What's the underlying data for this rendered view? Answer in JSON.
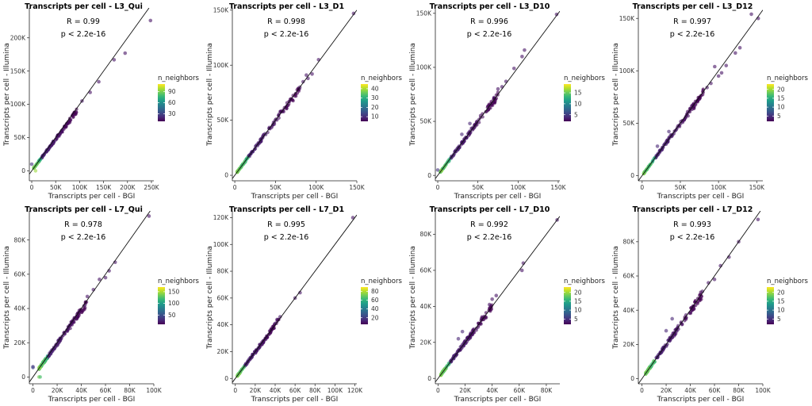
{
  "chart_data": [
    {
      "type": "scatter",
      "title": "Transcripts per cell - L3_Qui",
      "xlabel": "Transcripts per cell - BGI",
      "ylabel": "Transcripts per cell - Illumina",
      "xlim": [
        -5000,
        255000
      ],
      "ylim": [
        -15000,
        245000
      ],
      "xticks": [
        0,
        50000,
        100000,
        150000,
        200000,
        250000
      ],
      "xticklabels": [
        "0",
        "50K",
        "100K",
        "150K",
        "200K",
        "250K"
      ],
      "yticks": [
        0,
        50000,
        100000,
        150000,
        200000
      ],
      "yticklabels": [
        "0",
        "50K",
        "100K",
        "150K",
        "200K"
      ],
      "annotation_r": "R = 0.99",
      "annotation_p": "p < 2.2e-16",
      "legend": {
        "title": "n_neighbors",
        "ticks": [
          30,
          60,
          90
        ],
        "tick_labels": [
          "30",
          "60",
          "90"
        ],
        "min": 10,
        "max": 110,
        "placement": "right"
      },
      "identity_line": true,
      "points": [
        [
          0,
          10000,
          0.15
        ],
        [
          8000,
          0,
          0.85
        ],
        [
          248000,
          226000,
          0.05
        ],
        [
          195000,
          177000,
          0.05
        ],
        [
          172000,
          167000,
          0.05
        ],
        [
          140000,
          134000,
          0.05
        ],
        [
          122000,
          118000,
          0.05
        ],
        [
          105000,
          105000,
          0.05
        ]
      ],
      "cloud": {
        "x_start": 4000,
        "x_end": 95000,
        "slope": 0.95,
        "n": 170,
        "seed": 11
      }
    },
    {
      "type": "scatter",
      "title": "Transcripts per cell - L3_D1",
      "xlabel": "Transcripts per cell - BGI",
      "ylabel": "Transcripts per cell - Illumina",
      "xlim": [
        -3000,
        150000
      ],
      "ylim": [
        -5000,
        152000
      ],
      "xticks": [
        0,
        50000,
        100000,
        150000
      ],
      "xticklabels": [
        "0",
        "50K",
        "100K",
        "150K"
      ],
      "yticks": [
        0,
        50000,
        100000,
        150000
      ],
      "yticklabels": [
        "0",
        "50K",
        "100K",
        "150K"
      ],
      "annotation_r": "R = 0.998",
      "annotation_p": "p < 2.2e-16",
      "legend": {
        "title": "n_neighbors",
        "ticks": [
          10,
          20,
          30,
          40
        ],
        "tick_labels": [
          "10",
          "20",
          "30",
          "40"
        ],
        "min": 5,
        "max": 45,
        "placement": "right"
      },
      "identity_line": true,
      "points": [
        [
          146000,
          147000,
          0.05
        ],
        [
          103000,
          105000,
          0.05
        ],
        [
          95000,
          92000,
          0.05
        ],
        [
          90000,
          88000,
          0.05
        ],
        [
          88000,
          91000,
          0.05
        ],
        [
          84000,
          85000,
          0.05
        ],
        [
          80000,
          80000,
          0.05
        ]
      ],
      "cloud": {
        "x_start": 3000,
        "x_end": 80000,
        "slope": 0.99,
        "n": 170,
        "seed": 12
      }
    },
    {
      "type": "scatter",
      "title": "Transcripts per cell - L3_D10",
      "xlabel": "Transcripts per cell - BGI",
      "ylabel": "Transcripts per cell - Illumina",
      "xlim": [
        -3000,
        152000
      ],
      "ylim": [
        -5000,
        155000
      ],
      "xticks": [
        0,
        50000,
        100000,
        150000
      ],
      "xticklabels": [
        "0",
        "50K",
        "100K",
        "150K"
      ],
      "yticks": [
        0,
        50000,
        100000,
        150000
      ],
      "yticklabels": [
        "0",
        "50K",
        "100K",
        "150K"
      ],
      "annotation_r": "R = 0.996",
      "annotation_p": "p < 2.2e-16",
      "legend": {
        "title": "n_neighbors",
        "ticks": [
          5,
          10,
          15
        ],
        "tick_labels": [
          "5",
          "10",
          "15"
        ],
        "min": 2,
        "max": 19,
        "placement": "right"
      },
      "identity_line": true,
      "points": [
        [
          148000,
          149000,
          0.05
        ],
        [
          108000,
          116000,
          0.05
        ],
        [
          105000,
          110000,
          0.05
        ],
        [
          95000,
          99000,
          0.05
        ],
        [
          85000,
          87000,
          0.05
        ],
        [
          80000,
          82000,
          0.05
        ],
        [
          75000,
          80000,
          0.05
        ],
        [
          70000,
          72000,
          0.05
        ],
        [
          0,
          5000,
          0.15
        ],
        [
          30000,
          38000,
          0.1
        ],
        [
          40000,
          48000,
          0.1
        ]
      ],
      "cloud": {
        "x_start": 3000,
        "x_end": 75000,
        "slope": 0.99,
        "n": 170,
        "seed": 13
      }
    },
    {
      "type": "scatter",
      "title": "Transcripts per cell - L3_D12",
      "xlabel": "Transcripts per cell - BGI",
      "ylabel": "Transcripts per cell - Illumina",
      "xlim": [
        -5000,
        158000
      ],
      "ylim": [
        -5000,
        160000
      ],
      "xticks": [
        0,
        50000,
        100000,
        150000
      ],
      "xticklabels": [
        "0",
        "50K",
        "100K",
        "150K"
      ],
      "yticks": [
        0,
        50000,
        100000,
        150000
      ],
      "yticklabels": [
        "0",
        "50K",
        "100K",
        "150K"
      ],
      "annotation_r": "R = 0.997",
      "annotation_p": "p < 2.2e-16",
      "legend": {
        "title": "n_neighbors",
        "ticks": [
          5,
          10,
          15,
          20
        ],
        "tick_labels": [
          "5",
          "10",
          "15",
          "20"
        ],
        "min": 2,
        "max": 23,
        "placement": "right"
      },
      "identity_line": true,
      "points": [
        [
          152000,
          150000,
          0.05
        ],
        [
          143000,
          154000,
          0.05
        ],
        [
          128000,
          122000,
          0.05
        ],
        [
          122000,
          117000,
          0.05
        ],
        [
          110000,
          105000,
          0.05
        ],
        [
          104000,
          98000,
          0.05
        ],
        [
          100000,
          95000,
          0.05
        ],
        [
          95000,
          104000,
          0.05
        ],
        [
          90000,
          88000,
          0.05
        ],
        [
          85000,
          84000,
          0.05
        ],
        [
          20000,
          28000,
          0.1
        ],
        [
          35000,
          42000,
          0.1
        ]
      ],
      "cloud": {
        "x_start": 2000,
        "x_end": 85000,
        "slope": 0.99,
        "n": 180,
        "seed": 14
      }
    },
    {
      "type": "scatter",
      "title": "Transcripts per cell - L7_Qui",
      "xlabel": "Transcripts per cell - BGI",
      "ylabel": "Transcripts per cell - Illumina",
      "xlim": [
        -3000,
        100000
      ],
      "ylim": [
        -4000,
        97000
      ],
      "xticks": [
        0,
        20000,
        40000,
        60000,
        80000,
        100000
      ],
      "xticklabels": [
        "0",
        "20K",
        "40K",
        "60K",
        "80K",
        "100K"
      ],
      "yticks": [
        0,
        20000,
        40000,
        60000,
        80000
      ],
      "yticklabels": [
        "0",
        "20K",
        "40K",
        "60K",
        "80K"
      ],
      "annotation_r": "R = 0.978",
      "annotation_p": "p < 2.2e-16",
      "legend": {
        "title": "n_neighbors",
        "ticks": [
          50,
          100,
          150
        ],
        "tick_labels": [
          "50",
          "100",
          "150"
        ],
        "min": 10,
        "max": 170,
        "placement": "right"
      },
      "identity_line": true,
      "points": [
        [
          96000,
          94000,
          0.05
        ],
        [
          68000,
          67000,
          0.05
        ],
        [
          63000,
          62000,
          0.05
        ],
        [
          60000,
          58000,
          0.05
        ],
        [
          55000,
          57000,
          0.05
        ],
        [
          50000,
          51000,
          0.05
        ],
        [
          45000,
          47000,
          0.05
        ],
        [
          43000,
          42000,
          0.05
        ],
        [
          0,
          6000,
          0.15
        ],
        [
          0,
          5500,
          0.2
        ],
        [
          5000,
          0,
          0.8
        ],
        [
          6000,
          0,
          0.7
        ]
      ],
      "cloud": {
        "x_start": 5000,
        "x_end": 45000,
        "slope": 0.97,
        "n": 190,
        "seed": 15
      }
    },
    {
      "type": "scatter",
      "title": "Transcripts per cell - L7_D1",
      "xlabel": "Transcripts per cell - BGI",
      "ylabel": "Transcripts per cell - Illumina",
      "xlim": [
        -3000,
        122000
      ],
      "ylim": [
        -4000,
        125000
      ],
      "xticks": [
        0,
        20000,
        40000,
        60000,
        80000,
        100000,
        120000
      ],
      "xticklabels": [
        "0",
        "20K",
        "40K",
        "60K",
        "80K",
        "100K",
        "120K"
      ],
      "yticks": [
        0,
        20000,
        40000,
        60000,
        80000,
        100000,
        120000
      ],
      "yticklabels": [
        "0",
        "20K",
        "40K",
        "60K",
        "80K",
        "100K",
        "120K"
      ],
      "annotation_r": "R = 0.995",
      "annotation_p": "p < 2.2e-16",
      "legend": {
        "title": "n_neighbors",
        "ticks": [
          20,
          40,
          60,
          80
        ],
        "tick_labels": [
          "20",
          "40",
          "60",
          "80"
        ],
        "min": 5,
        "max": 90,
        "placement": "right"
      },
      "identity_line": true,
      "points": [
        [
          118000,
          120000,
          0.05
        ],
        [
          65000,
          64000,
          0.05
        ],
        [
          60000,
          60000,
          0.05
        ],
        [
          45000,
          46000,
          0.05
        ],
        [
          42000,
          44000,
          0.05
        ],
        [
          40000,
          41000,
          0.05
        ]
      ],
      "cloud": {
        "x_start": 2000,
        "x_end": 45000,
        "slope": 0.99,
        "n": 160,
        "seed": 16
      }
    },
    {
      "type": "scatter",
      "title": "Transcripts per cell - L7_D10",
      "xlabel": "Transcripts per cell - BGI",
      "ylabel": "Transcripts per cell - Illumina",
      "xlim": [
        -2000,
        90000
      ],
      "ylim": [
        -3000,
        93000
      ],
      "xticks": [
        0,
        20000,
        40000,
        60000,
        80000
      ],
      "xticklabels": [
        "0",
        "20K",
        "40K",
        "60K",
        "80K"
      ],
      "yticks": [
        0,
        20000,
        40000,
        60000,
        80000
      ],
      "yticklabels": [
        "0",
        "20K",
        "40K",
        "60K",
        "80K"
      ],
      "annotation_r": "R = 0.992",
      "annotation_p": "p < 2.2e-16",
      "legend": {
        "title": "n_neighbors",
        "ticks": [
          5,
          10,
          15,
          20
        ],
        "tick_labels": [
          "5",
          "10",
          "15",
          "20"
        ],
        "min": 2,
        "max": 23,
        "placement": "right"
      },
      "identity_line": true,
      "points": [
        [
          88000,
          88000,
          0.05
        ],
        [
          63000,
          64000,
          0.05
        ],
        [
          62000,
          60000,
          0.05
        ],
        [
          43000,
          46000,
          0.05
        ],
        [
          40000,
          44000,
          0.05
        ],
        [
          38000,
          41000,
          0.05
        ],
        [
          15000,
          22000,
          0.1
        ],
        [
          18000,
          26000,
          0.1
        ]
      ],
      "cloud": {
        "x_start": 2000,
        "x_end": 40000,
        "slope": 1.0,
        "n": 180,
        "seed": 17
      }
    },
    {
      "type": "scatter",
      "title": "Transcripts per cell - L7_D12",
      "xlabel": "Transcripts per cell - BGI",
      "ylabel": "Transcripts per cell - Illumina",
      "xlim": [
        -3000,
        100000
      ],
      "ylim": [
        -3000,
        98000
      ],
      "xticks": [
        0,
        20000,
        40000,
        60000,
        80000,
        100000
      ],
      "xticklabels": [
        "0",
        "20K",
        "40K",
        "60K",
        "80K",
        "100K"
      ],
      "yticks": [
        0,
        20000,
        40000,
        60000,
        80000
      ],
      "yticklabels": [
        "0",
        "20K",
        "40K",
        "60K",
        "80K"
      ],
      "annotation_r": "R = 0.993",
      "annotation_p": "p < 2.2e-16",
      "legend": {
        "title": "n_neighbors",
        "ticks": [
          5,
          10,
          15,
          20
        ],
        "tick_labels": [
          "5",
          "10",
          "15",
          "20"
        ],
        "min": 2,
        "max": 23,
        "placement": "right"
      },
      "identity_line": true,
      "points": [
        [
          96000,
          93000,
          0.05
        ],
        [
          80000,
          80000,
          0.05
        ],
        [
          72000,
          71000,
          0.05
        ],
        [
          65000,
          66000,
          0.05
        ],
        [
          60000,
          58000,
          0.05
        ],
        [
          55000,
          56000,
          0.05
        ],
        [
          50000,
          51000,
          0.05
        ],
        [
          20000,
          28000,
          0.1
        ],
        [
          25000,
          35000,
          0.1
        ]
      ],
      "cloud": {
        "x_start": 3000,
        "x_end": 50000,
        "slope": 0.99,
        "n": 180,
        "seed": 18
      }
    }
  ]
}
